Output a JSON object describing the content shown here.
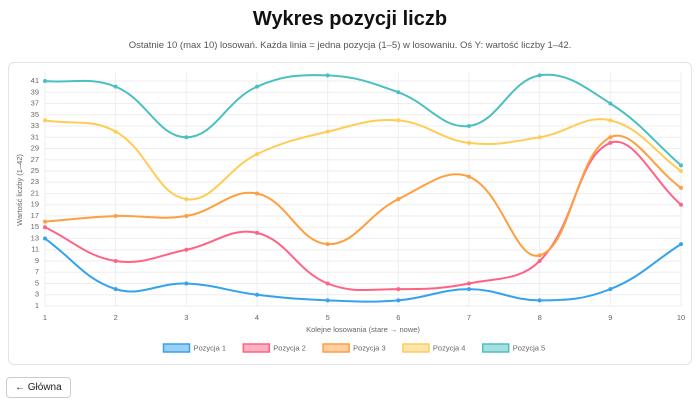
{
  "page": {
    "title": "Wykres pozycji liczb",
    "subtitle": "Ostatnie 10 (max 10) losowań. Każda linia = jedna pozycja (1–5) w losowaniu. Oś Y: wartość liczby 1–42.",
    "back_button": "← Główna"
  },
  "chart_data": {
    "type": "line",
    "x_label": "Kolejne losowania (stare → nowe)",
    "y_label": "Wartość liczby (1–42)",
    "x": [
      1,
      2,
      3,
      4,
      5,
      6,
      7,
      8,
      9,
      10
    ],
    "xlim": [
      1,
      10
    ],
    "xticks": [
      1,
      2,
      3,
      4,
      5,
      6,
      7,
      8,
      9,
      10
    ],
    "ylim": [
      1,
      42
    ],
    "yticks": [
      1,
      3,
      5,
      7,
      9,
      11,
      13,
      15,
      17,
      19,
      21,
      23,
      25,
      27,
      29,
      31,
      33,
      35,
      37,
      39,
      41
    ],
    "grid": true,
    "legend": "bottom",
    "series": [
      {
        "name": "Pozycja 1",
        "color": "#36a2eb",
        "values": [
          13,
          4,
          5,
          3,
          2,
          2,
          4,
          2,
          4,
          12
        ]
      },
      {
        "name": "Pozycja 2",
        "color": "#ff6384",
        "values": [
          15,
          9,
          11,
          14,
          5,
          4,
          5,
          9,
          30,
          19
        ]
      },
      {
        "name": "Pozycja 3",
        "color": "#ff9f40",
        "values": [
          16,
          17,
          17,
          21,
          12,
          20,
          24,
          10,
          31,
          22
        ]
      },
      {
        "name": "Pozycja 4",
        "color": "#ffcd56",
        "values": [
          34,
          32,
          20,
          28,
          32,
          34,
          30,
          31,
          34,
          25
        ]
      },
      {
        "name": "Pozycja 5",
        "color": "#4bc0c0",
        "values": [
          41,
          40,
          31,
          40,
          42,
          39,
          33,
          42,
          37,
          26
        ]
      }
    ]
  }
}
